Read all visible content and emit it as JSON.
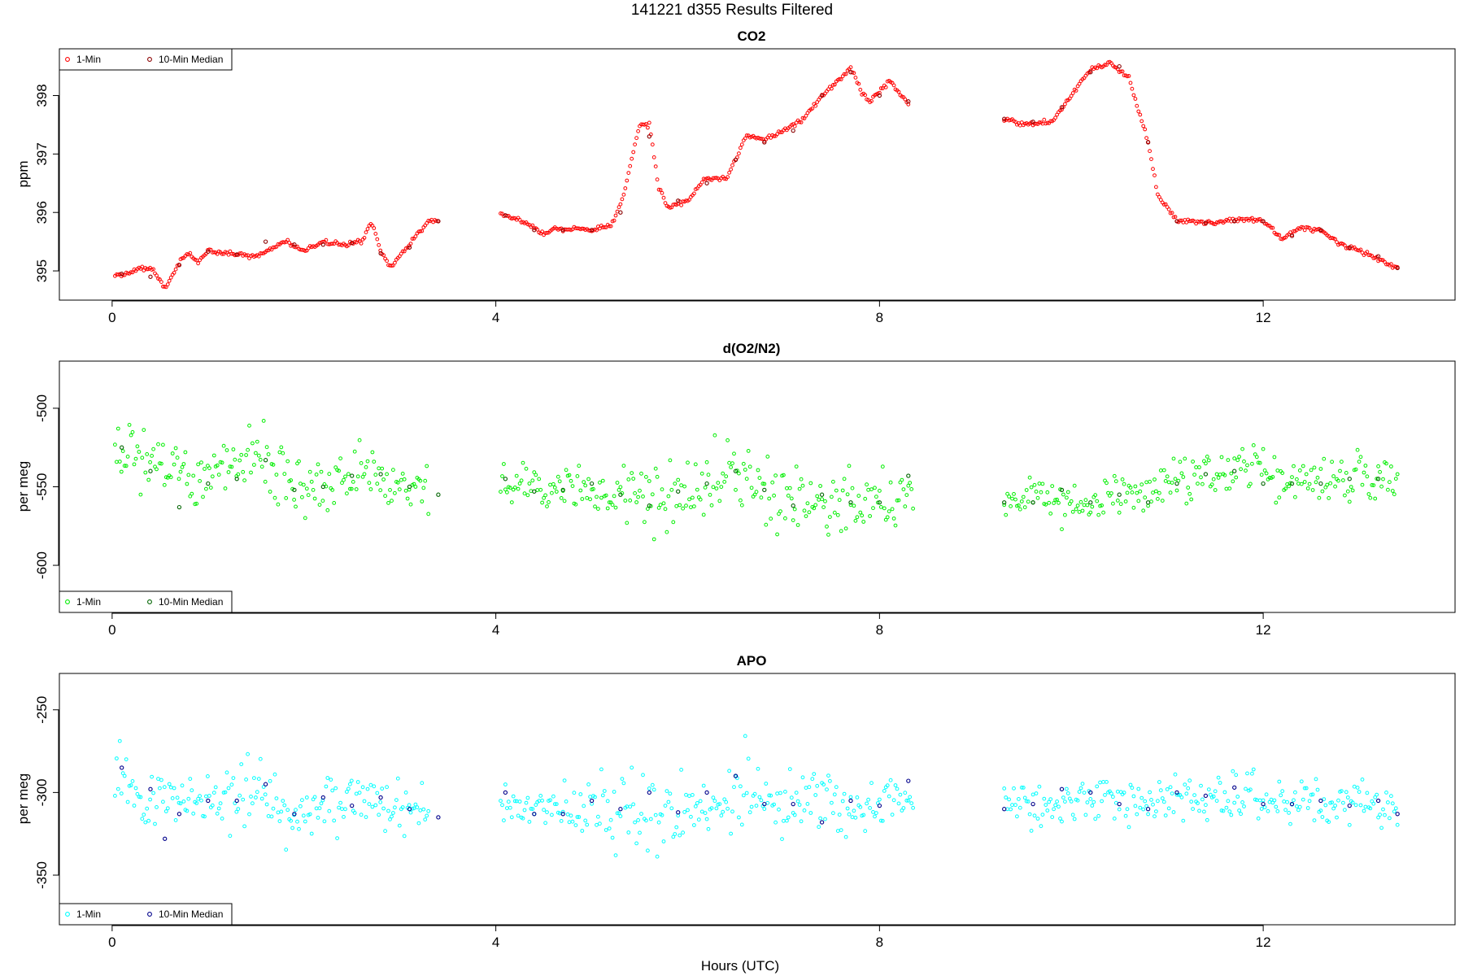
{
  "figure": {
    "title": "141221   d355   Results Filtered",
    "xlabel": "Hours (UTC)"
  },
  "chart_data": [
    {
      "type": "scatter",
      "title": "CO2",
      "xlabel": "",
      "ylabel": "ppm",
      "xlim": [
        -0.55,
        14.0
      ],
      "ylim": [
        394.5,
        398.8
      ],
      "xticks": [
        0,
        4,
        8,
        12
      ],
      "yticks": [
        395,
        396,
        397,
        398
      ],
      "grid": false,
      "legend": {
        "position": "top-left",
        "entries": [
          "1-Min",
          "10-Min Median"
        ]
      },
      "colors": {
        "1-Min": "#ff0000",
        "10-Min Median": "#8b0000"
      },
      "series": [
        {
          "name": "1-Min",
          "segments": [
            {
              "x": [
                0.03,
                0.2,
                0.3,
                0.42,
                0.5,
                0.55,
                0.62,
                0.72,
                0.8,
                0.9,
                1.0,
                1.2,
                1.5,
                1.8,
                2.0,
                2.2,
                2.4,
                2.6,
                2.7,
                2.8,
                2.9,
                3.1,
                3.3,
                3.4
              ],
              "y": [
                394.92,
                394.98,
                395.05,
                395.05,
                394.85,
                394.7,
                394.9,
                395.2,
                395.3,
                395.15,
                395.35,
                395.3,
                395.25,
                395.5,
                395.35,
                395.5,
                395.45,
                395.5,
                395.85,
                395.35,
                395.05,
                395.45,
                395.85,
                395.88
              ]
            },
            {
              "x": [
                4.05,
                4.3,
                4.5,
                4.6,
                4.8,
                5.0,
                5.2,
                5.3,
                5.4,
                5.5,
                5.6,
                5.7,
                5.8,
                6.0,
                6.2,
                6.4,
                6.6,
                6.8,
                7.0,
                7.2,
                7.4,
                7.6,
                7.7,
                7.8,
                7.9,
                8.1,
                8.3
              ],
              "y": [
                395.97,
                395.85,
                395.62,
                395.72,
                395.72,
                395.7,
                395.78,
                396.1,
                396.8,
                397.5,
                397.5,
                396.4,
                396.1,
                396.2,
                396.6,
                396.55,
                397.3,
                397.25,
                397.4,
                397.6,
                398.0,
                398.3,
                398.5,
                398.1,
                397.9,
                398.25,
                397.85
              ]
            },
            {
              "x": [
                9.3,
                9.5,
                9.8,
                10.0,
                10.2,
                10.4,
                10.6,
                10.8,
                10.9,
                11.1,
                11.5,
                11.8,
                12.0,
                12.2,
                12.4,
                12.6,
                12.8,
                13.0,
                13.2,
                13.4
              ],
              "y": [
                397.6,
                397.5,
                397.55,
                398.0,
                398.45,
                398.55,
                398.3,
                397.2,
                396.3,
                395.85,
                395.82,
                395.88,
                395.85,
                395.55,
                395.75,
                395.7,
                395.45,
                395.35,
                395.2,
                395.05
              ]
            }
          ]
        },
        {
          "name": "10-Min Median",
          "segments": [
            {
              "x": [
                0.1,
                0.4,
                0.7,
                1.0,
                1.3,
                1.6,
                1.9,
                2.2,
                2.5,
                2.8,
                3.1,
                3.4
              ],
              "y": [
                394.95,
                394.9,
                395.1,
                395.33,
                395.28,
                395.5,
                395.45,
                395.45,
                395.48,
                395.3,
                395.4,
                395.85
              ]
            },
            {
              "x": [
                4.1,
                4.4,
                4.7,
                5.0,
                5.3,
                5.6,
                5.9,
                6.2,
                6.5,
                6.8,
                7.1,
                7.4,
                7.7,
                8.0,
                8.3
              ],
              "y": [
                395.95,
                395.7,
                395.7,
                395.7,
                396.0,
                397.3,
                396.2,
                396.5,
                396.9,
                397.2,
                397.4,
                398.0,
                398.4,
                398.0,
                397.9
              ]
            },
            {
              "x": [
                9.3,
                9.6,
                9.9,
                10.2,
                10.5,
                10.8,
                11.1,
                11.4,
                11.7,
                12.0,
                12.3,
                12.6,
                12.9,
                13.2,
                13.4
              ],
              "y": [
                397.6,
                397.55,
                397.8,
                398.4,
                398.5,
                397.2,
                395.85,
                395.82,
                395.85,
                395.85,
                395.6,
                395.7,
                395.4,
                395.25,
                395.05
              ]
            }
          ]
        }
      ]
    },
    {
      "type": "scatter",
      "title": "d(O2/N2)",
      "xlabel": "",
      "ylabel": "per meg",
      "xlim": [
        -0.55,
        14.0
      ],
      "ylim": [
        -630,
        -470
      ],
      "xticks": [
        0,
        4,
        8,
        12
      ],
      "yticks": [
        -500,
        -550,
        -600
      ],
      "grid": false,
      "legend": {
        "position": "bottom-left",
        "entries": [
          "1-Min",
          "10-Min Median"
        ]
      },
      "colors": {
        "1-Min": "#00ee00",
        "10-Min Median": "#006400"
      },
      "series": [
        {
          "name": "1-Min",
          "segments": [
            {
              "x": [
                0.03,
                0.35,
                0.9,
                1.45,
                1.55,
                1.9,
                2.4,
                2.6,
                2.9,
                3.3
              ],
              "mean": [
                -520,
                -535,
                -545,
                -530,
                -530,
                -552,
                -545,
                -540,
                -548,
                -550
              ],
              "spread": [
                8,
                9,
                8,
                12,
                10,
                8,
                9,
                9,
                8,
                7
              ]
            },
            {
              "x": [
                4.05,
                4.6,
                5.1,
                5.6,
                6.1,
                6.5,
                6.9,
                7.3,
                7.7,
                8.1,
                8.35
              ],
              "mean": [
                -545,
                -552,
                -553,
                -555,
                -553,
                -548,
                -556,
                -558,
                -560,
                -560,
                -552
              ],
              "spread": [
                7,
                8,
                8,
                14,
                9,
                14,
                12,
                10,
                13,
                9,
                6
              ]
            },
            {
              "x": [
                9.3,
                9.8,
                10.3,
                10.7,
                11.1,
                11.5,
                11.9,
                12.3,
                12.8,
                13.2,
                13.4
              ],
              "mean": [
                -560,
                -558,
                -560,
                -555,
                -545,
                -540,
                -538,
                -548,
                -548,
                -542,
                -550
              ],
              "spread": [
                5,
                7,
                8,
                8,
                7,
                8,
                8,
                7,
                7,
                7,
                5
              ]
            }
          ]
        },
        {
          "name": "10-Min Median",
          "segments": [
            {
              "x": [
                0.1,
                0.4,
                0.7,
                1.0,
                1.3,
                1.6,
                1.9,
                2.2,
                2.5,
                2.8,
                3.1,
                3.4
              ],
              "y": [
                -525,
                -540,
                -563,
                -548,
                -545,
                -533,
                -552,
                -550,
                -543,
                -542,
                -550,
                -555
              ]
            },
            {
              "x": [
                4.1,
                4.4,
                4.7,
                5.0,
                5.3,
                5.6,
                5.9,
                6.2,
                6.5,
                6.8,
                7.1,
                7.4,
                7.7,
                8.0,
                8.3
              ],
              "y": [
                -545,
                -553,
                -552,
                -548,
                -555,
                -562,
                -553,
                -548,
                -540,
                -552,
                -562,
                -555,
                -560,
                -560,
                -543
              ]
            },
            {
              "x": [
                9.3,
                9.6,
                9.9,
                10.2,
                10.5,
                10.8,
                11.1,
                11.4,
                11.7,
                12.0,
                12.3,
                12.6,
                12.9,
                13.2
              ],
              "y": [
                -560,
                -560,
                -552,
                -560,
                -555,
                -560,
                -548,
                -542,
                -540,
                -548,
                -548,
                -548,
                -545,
                -545
              ]
            }
          ]
        }
      ]
    },
    {
      "type": "scatter",
      "title": "APO",
      "xlabel": "Hours (UTC)",
      "ylabel": "per meg",
      "xlim": [
        -0.55,
        14.0
      ],
      "ylim": [
        -380,
        -228
      ],
      "xticks": [
        0,
        4,
        8,
        12
      ],
      "yticks": [
        -250,
        -300,
        -350
      ],
      "grid": false,
      "legend": {
        "position": "bottom-left",
        "entries": [
          "1-Min",
          "10-Min Median"
        ]
      },
      "colors": {
        "1-Min": "#00ffff",
        "10-Min Median": "#00008b"
      },
      "series": [
        {
          "name": "1-Min",
          "segments": [
            {
              "x": [
                0.03,
                0.35,
                0.9,
                1.45,
                1.55,
                1.9,
                2.4,
                2.6,
                2.9,
                3.3
              ],
              "mean": [
                -290,
                -305,
                -307,
                -298,
                -295,
                -313,
                -305,
                -302,
                -308,
                -312
              ],
              "spread": [
                8,
                9,
                8,
                12,
                10,
                8,
                9,
                9,
                8,
                7
              ]
            },
            {
              "x": [
                4.05,
                4.6,
                5.1,
                5.6,
                6.1,
                6.5,
                6.9,
                7.3,
                7.7,
                8.1,
                8.35
              ],
              "mean": [
                -305,
                -310,
                -310,
                -312,
                -308,
                -300,
                -305,
                -305,
                -308,
                -308,
                -303
              ],
              "spread": [
                7,
                8,
                8,
                14,
                9,
                14,
                12,
                10,
                13,
                9,
                6
              ]
            },
            {
              "x": [
                9.3,
                9.8,
                10.3,
                10.7,
                11.1,
                11.5,
                11.9,
                12.3,
                12.8,
                13.2,
                13.4
              ],
              "mean": [
                -308,
                -305,
                -305,
                -305,
                -302,
                -303,
                -300,
                -308,
                -307,
                -305,
                -308
              ],
              "spread": [
                5,
                7,
                8,
                8,
                7,
                8,
                8,
                7,
                7,
                7,
                5
              ]
            }
          ]
        },
        {
          "name": "10-Min Median",
          "segments": [
            {
              "x": [
                0.1,
                0.4,
                0.55,
                0.7,
                1.0,
                1.3,
                1.6,
                1.9,
                2.2,
                2.5,
                2.8,
                3.1,
                3.4
              ],
              "y": [
                -285,
                -298,
                -328,
                -313,
                -305,
                -305,
                -295,
                -313,
                -303,
                -308,
                -303,
                -310,
                -315
              ]
            },
            {
              "x": [
                4.1,
                4.4,
                4.7,
                5.0,
                5.3,
                5.6,
                5.9,
                6.2,
                6.5,
                6.8,
                7.1,
                7.4,
                7.7,
                8.0,
                8.3
              ],
              "y": [
                -300,
                -313,
                -313,
                -305,
                -310,
                -300,
                -312,
                -300,
                -290,
                -307,
                -307,
                -318,
                -305,
                -308,
                -293
              ]
            },
            {
              "x": [
                9.3,
                9.6,
                9.9,
                10.2,
                10.5,
                10.8,
                11.1,
                11.4,
                11.7,
                12.0,
                12.3,
                12.6,
                12.9,
                13.2,
                13.4
              ],
              "y": [
                -310,
                -307,
                -298,
                -300,
                -307,
                -310,
                -300,
                -302,
                -297,
                -307,
                -307,
                -305,
                -308,
                -305,
                -313
              ]
            }
          ]
        }
      ]
    }
  ]
}
